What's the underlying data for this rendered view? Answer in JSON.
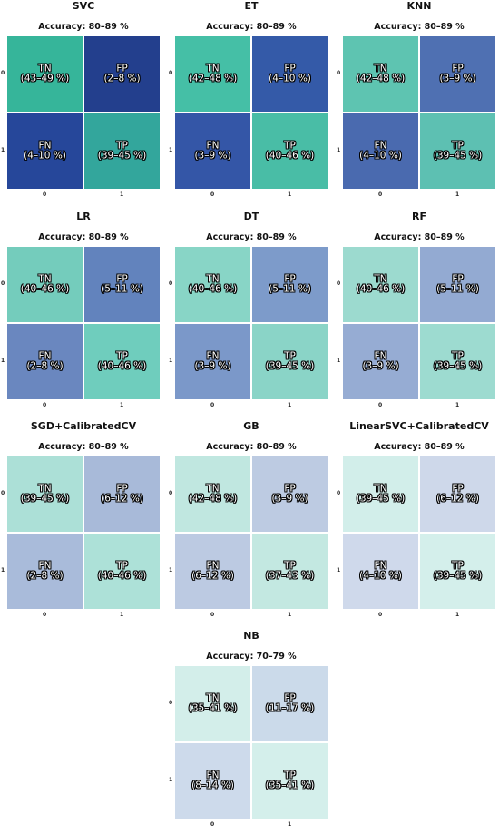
{
  "chart_data": [
    {
      "type": "heatmap",
      "title": "SVC",
      "accuracy": "Accuracy: 80–89 %",
      "x_ticks": [
        "0",
        "1"
      ],
      "y_ticks": [
        "0",
        "1"
      ],
      "cells": [
        {
          "label": "TN",
          "range": "(43–49 %)",
          "color": "#36b59a"
        },
        {
          "label": "FP",
          "range": "(2–8 %)",
          "color": "#233f8d"
        },
        {
          "label": "FN",
          "range": "(4–10 %)",
          "color": "#26479a"
        },
        {
          "label": "TP",
          "range": "(39–45 %)",
          "color": "#33a69c"
        }
      ]
    },
    {
      "type": "heatmap",
      "title": "ET",
      "accuracy": "Accuracy: 80–89 %",
      "x_ticks": [
        "0",
        "1"
      ],
      "y_ticks": [
        "0",
        "1"
      ],
      "cells": [
        {
          "label": "TN",
          "range": "(42–48 %)",
          "color": "#45bfa6"
        },
        {
          "label": "FP",
          "range": "(4–10 %)",
          "color": "#345aa8"
        },
        {
          "label": "FN",
          "range": "(3–9 %)",
          "color": "#3456a7"
        },
        {
          "label": "TP",
          "range": "(40–46 %)",
          "color": "#49bda6"
        }
      ]
    },
    {
      "type": "heatmap",
      "title": "KNN",
      "accuracy": "Accuracy: 80–89 %",
      "x_ticks": [
        "0",
        "1"
      ],
      "y_ticks": [
        "0",
        "1"
      ],
      "cells": [
        {
          "label": "TN",
          "range": "(42–48 %)",
          "color": "#5ec4b1"
        },
        {
          "label": "FP",
          "range": "(3–9 %)",
          "color": "#4f70b2"
        },
        {
          "label": "FN",
          "range": "(4–10 %)",
          "color": "#4a6aaf"
        },
        {
          "label": "TP",
          "range": "(39–45 %)",
          "color": "#5dc0b2"
        }
      ]
    },
    {
      "type": "heatmap",
      "title": "LR",
      "accuracy": "Accuracy: 80–89 %",
      "x_ticks": [
        "0",
        "1"
      ],
      "y_ticks": [
        "0",
        "1"
      ],
      "cells": [
        {
          "label": "TN",
          "range": "(40–46 %)",
          "color": "#74ccbc"
        },
        {
          "label": "FP",
          "range": "(5–11 %)",
          "color": "#6283bd"
        },
        {
          "label": "FN",
          "range": "(2–8 %)",
          "color": "#6a87bf"
        },
        {
          "label": "TP",
          "range": "(40–46 %)",
          "color": "#6fcdbd"
        }
      ]
    },
    {
      "type": "heatmap",
      "title": "DT",
      "accuracy": "Accuracy: 80–89 %",
      "x_ticks": [
        "0",
        "1"
      ],
      "y_ticks": [
        "0",
        "1"
      ],
      "cells": [
        {
          "label": "TN",
          "range": "(40–46 %)",
          "color": "#88d5c6"
        },
        {
          "label": "FP",
          "range": "(5–11 %)",
          "color": "#7d9bca"
        },
        {
          "label": "FN",
          "range": "(3–9 %)",
          "color": "#7b98c9"
        },
        {
          "label": "TP",
          "range": "(39–45 %)",
          "color": "#8ad4c7"
        }
      ]
    },
    {
      "type": "heatmap",
      "title": "RF",
      "accuracy": "Accuracy: 80–89 %",
      "x_ticks": [
        "0",
        "1"
      ],
      "y_ticks": [
        "0",
        "1"
      ],
      "cells": [
        {
          "label": "TN",
          "range": "(40–46 %)",
          "color": "#9cdacf"
        },
        {
          "label": "FP",
          "range": "(5–11 %)",
          "color": "#93aad2"
        },
        {
          "label": "FN",
          "range": "(3–9 %)",
          "color": "#96acd3"
        },
        {
          "label": "TP",
          "range": "(39–45 %)",
          "color": "#9ddbd0"
        }
      ]
    },
    {
      "type": "heatmap",
      "title": "SGD+CalibratedCV",
      "accuracy": "Accuracy: 80–89 %",
      "x_ticks": [
        "0",
        "1"
      ],
      "y_ticks": [
        "0",
        "1"
      ],
      "cells": [
        {
          "label": "TN",
          "range": "(39–45 %)",
          "color": "#ace0d7"
        },
        {
          "label": "FP",
          "range": "(6–12 %)",
          "color": "#a8bad9"
        },
        {
          "label": "FN",
          "range": "(2–8 %)",
          "color": "#a9bbda"
        },
        {
          "label": "TP",
          "range": "(40–46 %)",
          "color": "#ade1d8"
        }
      ]
    },
    {
      "type": "heatmap",
      "title": "GB",
      "accuracy": "Accuracy: 80–89 %",
      "x_ticks": [
        "0",
        "1"
      ],
      "y_ticks": [
        "0",
        "1"
      ],
      "cells": [
        {
          "label": "TN",
          "range": "(42–48 %)",
          "color": "#c0e7e0"
        },
        {
          "label": "FP",
          "range": "(3–9 %)",
          "color": "#bdcbe2"
        },
        {
          "label": "FN",
          "range": "(6–12 %)",
          "color": "#bccae2"
        },
        {
          "label": "TP",
          "range": "(37–43 %)",
          "color": "#c3e8e1"
        }
      ]
    },
    {
      "type": "heatmap",
      "title": "LinearSVC+CalibratedCV",
      "accuracy": "Accuracy: 80–89 %",
      "x_ticks": [
        "0",
        "1"
      ],
      "y_ticks": [
        "0",
        "1"
      ],
      "cells": [
        {
          "label": "TN",
          "range": "(39–45 %)",
          "color": "#d2eeea"
        },
        {
          "label": "FP",
          "range": "(6–12 %)",
          "color": "#ced8ea"
        },
        {
          "label": "FN",
          "range": "(4–10 %)",
          "color": "#cfd9eb"
        },
        {
          "label": "TP",
          "range": "(39–45 %)",
          "color": "#d4efeb"
        }
      ]
    },
    {
      "type": "heatmap",
      "title": "NB",
      "accuracy": "Accuracy: 70–79 %",
      "x_ticks": [
        "0",
        "1"
      ],
      "y_ticks": [
        "0",
        "1"
      ],
      "cells": [
        {
          "label": "TN",
          "range": "(35–41 %)",
          "color": "#d3eeea"
        },
        {
          "label": "FP",
          "range": "(11–17 %)",
          "color": "#cbdaea"
        },
        {
          "label": "FN",
          "range": "(8–14 %)",
          "color": "#cddaeb"
        },
        {
          "label": "TP",
          "range": "(35–41 %)",
          "color": "#d4efeb"
        }
      ]
    }
  ]
}
